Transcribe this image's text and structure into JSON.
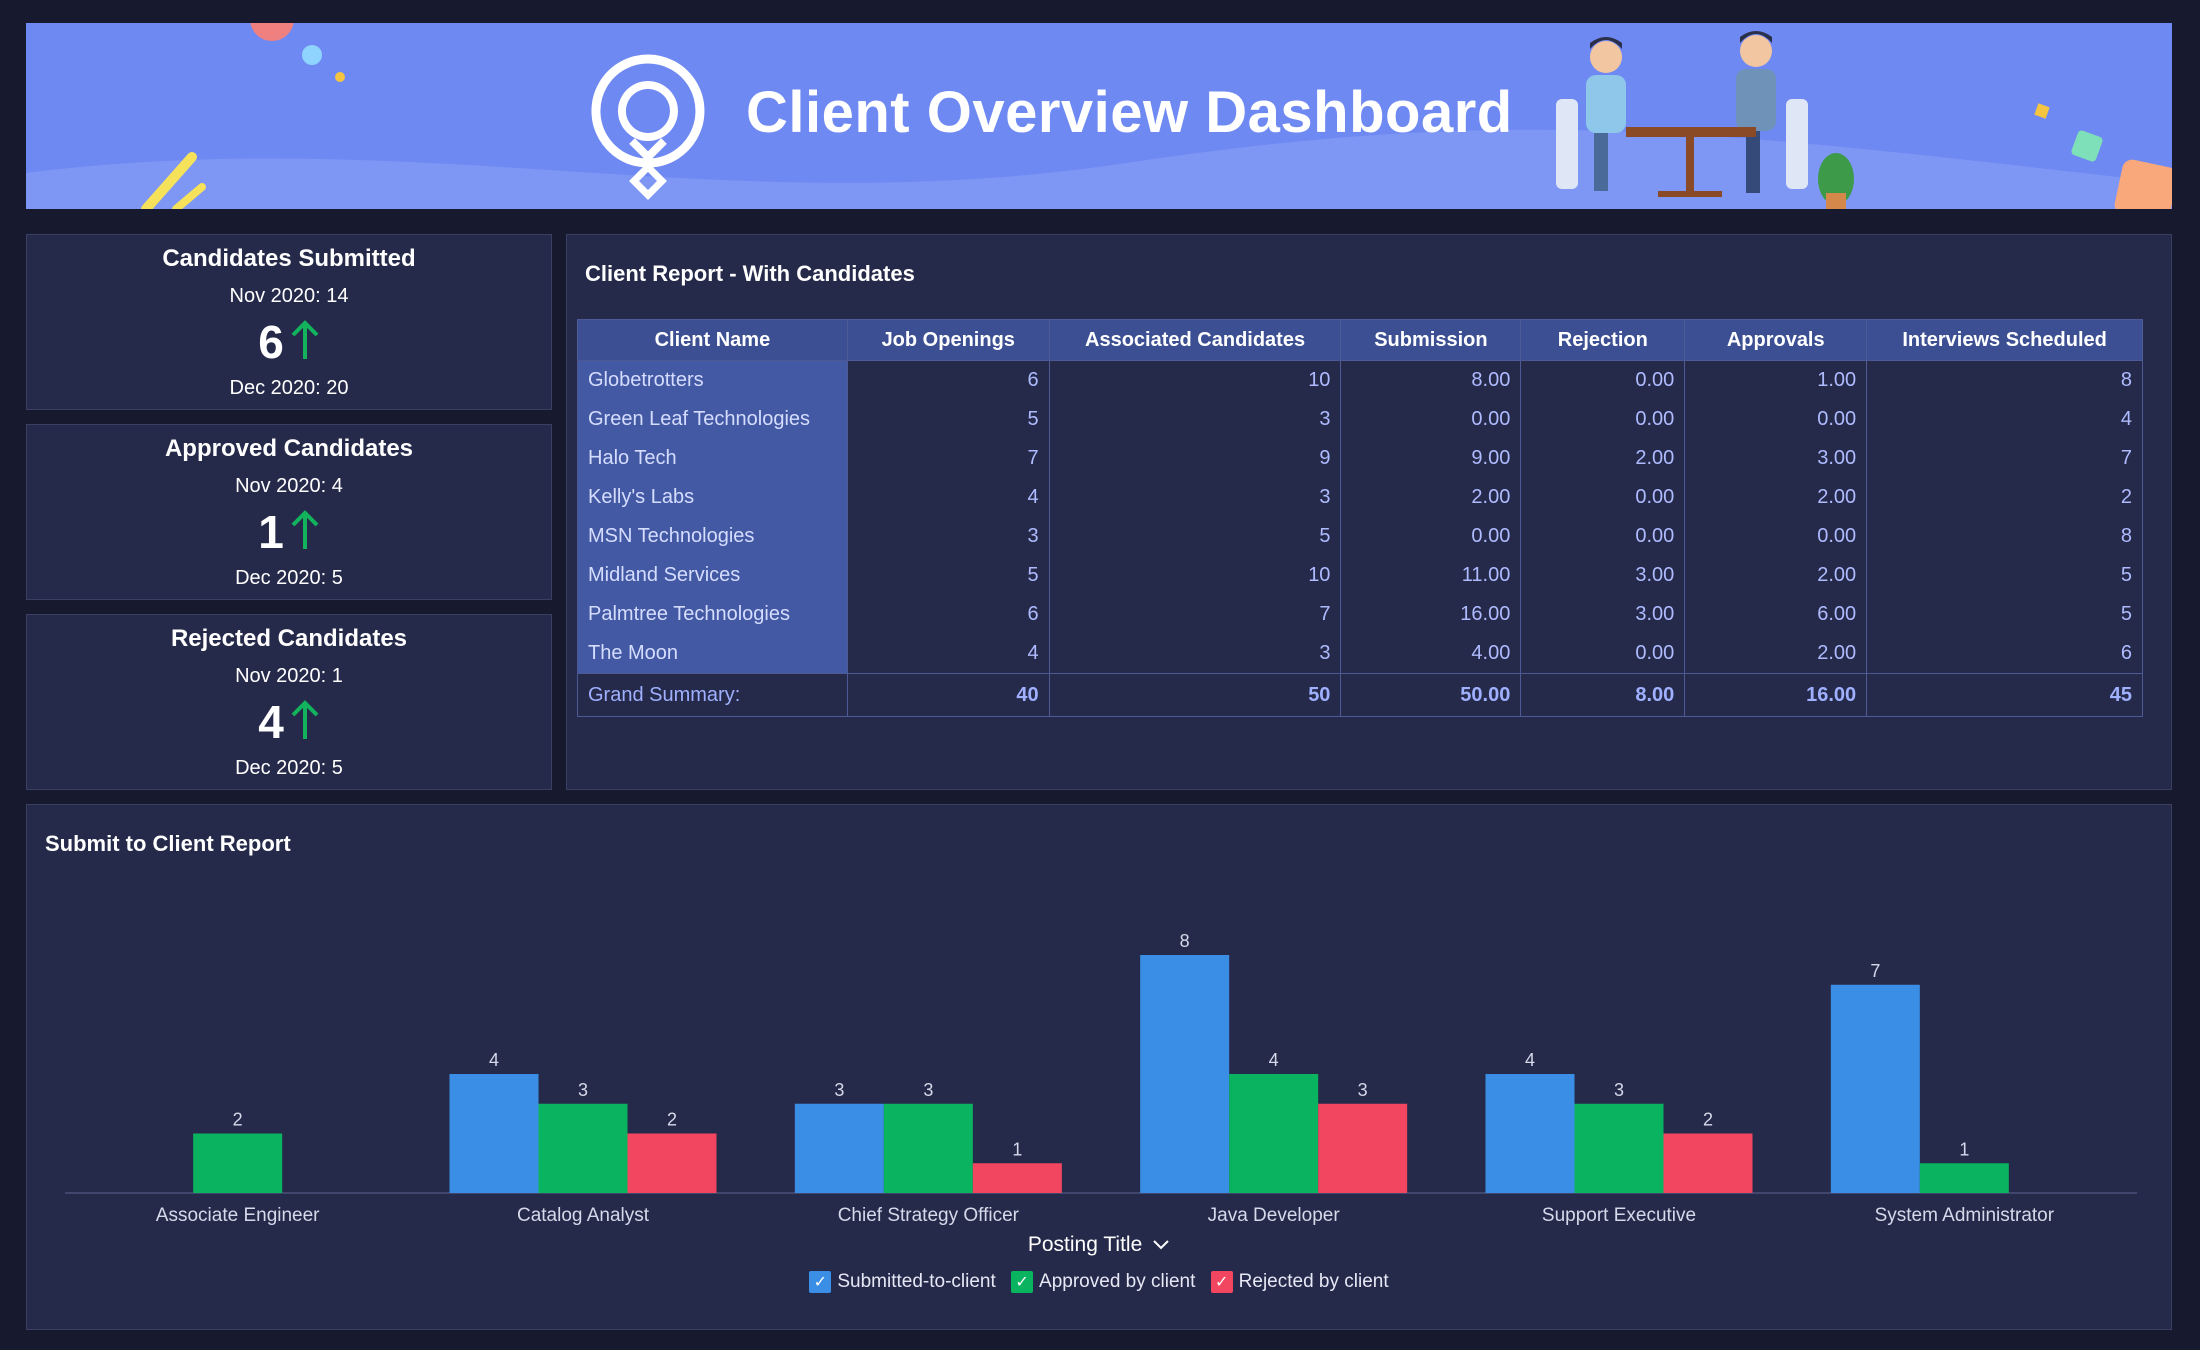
{
  "banner": {
    "title": "Client Overview Dashboard"
  },
  "kpis": [
    {
      "title": "Candidates Submitted",
      "prev": "Nov 2020: 14",
      "value": "6",
      "curr": "Dec 2020: 20"
    },
    {
      "title": "Approved Candidates",
      "prev": "Nov 2020: 4",
      "value": "1",
      "curr": "Dec 2020: 5"
    },
    {
      "title": "Rejected Candidates",
      "prev": "Nov 2020: 1",
      "value": "4",
      "curr": "Dec 2020: 5"
    }
  ],
  "report": {
    "title": "Client Report - With Candidates",
    "columns": [
      "Client Name",
      "Job Openings",
      "Associated Candidates",
      "Submission",
      "Rejection",
      "Approvals",
      "Interviews Scheduled"
    ],
    "rows": [
      [
        "Globetrotters",
        "6",
        "10",
        "8.00",
        "0.00",
        "1.00",
        "8"
      ],
      [
        "Green Leaf Technologies",
        "5",
        "3",
        "0.00",
        "0.00",
        "0.00",
        "4"
      ],
      [
        "Halo Tech",
        "7",
        "9",
        "9.00",
        "2.00",
        "3.00",
        "7"
      ],
      [
        "Kelly's Labs",
        "4",
        "3",
        "2.00",
        "0.00",
        "2.00",
        "2"
      ],
      [
        "MSN Technologies",
        "3",
        "5",
        "0.00",
        "0.00",
        "0.00",
        "8"
      ],
      [
        "Midland Services",
        "5",
        "10",
        "11.00",
        "3.00",
        "2.00",
        "5"
      ],
      [
        "Palmtree Technologies",
        "6",
        "7",
        "16.00",
        "3.00",
        "6.00",
        "5"
      ],
      [
        "The Moon",
        "4",
        "3",
        "4.00",
        "0.00",
        "2.00",
        "6"
      ]
    ],
    "summary": [
      "Grand Summary:",
      "40",
      "50",
      "50.00",
      "8.00",
      "16.00",
      "45"
    ]
  },
  "chart": {
    "title": "Submit to Client Report",
    "xlabel": "Posting Title",
    "colors": {
      "submitted": "#3a8ee6",
      "approved": "#0ab35f",
      "rejected": "#f24660"
    }
  },
  "chart_data": {
    "type": "bar",
    "title": "Submit to Client Report",
    "xlabel": "Posting Title",
    "ylabel": "",
    "categories": [
      "Associate Engineer",
      "Catalog Analyst",
      "Chief Strategy Officer",
      "Java Developer",
      "Support Executive",
      "System Administrator"
    ],
    "series": [
      {
        "name": "Submitted-to-client",
        "values": [
          null,
          4,
          3,
          8,
          4,
          7
        ]
      },
      {
        "name": "Approved by client",
        "values": [
          2,
          3,
          3,
          4,
          3,
          1
        ]
      },
      {
        "name": "Rejected by client",
        "values": [
          null,
          2,
          1,
          3,
          2,
          null
        ]
      }
    ],
    "ylim": [
      0,
      8
    ],
    "grid": false,
    "legend": "bottom"
  }
}
